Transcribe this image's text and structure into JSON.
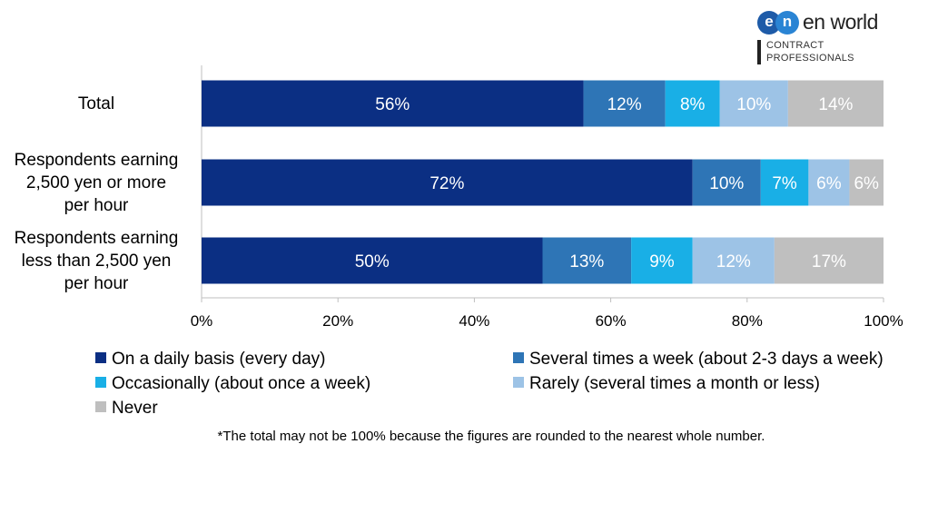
{
  "logo": {
    "badge_left": "e",
    "badge_right": "n",
    "wordmark": "en world",
    "sub_line1": "CONTRACT",
    "sub_line2": "PROFESSIONALS"
  },
  "chart_data": {
    "type": "bar",
    "orientation": "horizontal",
    "stacked": true,
    "categories": [
      [
        "Total"
      ],
      [
        "Respondents earning",
        "2,500 yen or more",
        "per hour"
      ],
      [
        "Respondents earning",
        "less than 2,500 yen",
        "per hour"
      ]
    ],
    "series": [
      {
        "name": "On a daily basis (every day)",
        "color": "#0b2f83",
        "values": [
          56,
          72,
          50
        ],
        "labels": [
          "56%",
          "72%",
          "50%"
        ]
      },
      {
        "name": "Several times a week (about 2-3 days a week)",
        "color": "#2e75b6",
        "values": [
          12,
          10,
          13
        ],
        "labels": [
          "12%",
          "10%",
          "13%"
        ]
      },
      {
        "name": "Occasionally (about once a week)",
        "color": "#19afe6",
        "values": [
          8,
          7,
          9
        ],
        "labels": [
          "8%",
          "7%",
          "9%"
        ]
      },
      {
        "name": "Rarely (several times a month or less)",
        "color": "#9dc3e6",
        "values": [
          10,
          6,
          12
        ],
        "labels": [
          "10%",
          "6%",
          "12%"
        ]
      },
      {
        "name": "Never",
        "color": "#bfbfbf",
        "values": [
          14,
          6,
          17
        ],
        "labels": [
          "14%",
          "6%",
          "17%"
        ]
      }
    ],
    "x_ticks": [
      "0%",
      "20%",
      "40%",
      "60%",
      "80%",
      "100%"
    ],
    "xlim": [
      0,
      100
    ],
    "grid": false,
    "legend_position": "bottom",
    "footnote": "*The total may not be 100% because the figures are rounded to the nearest whole number."
  }
}
